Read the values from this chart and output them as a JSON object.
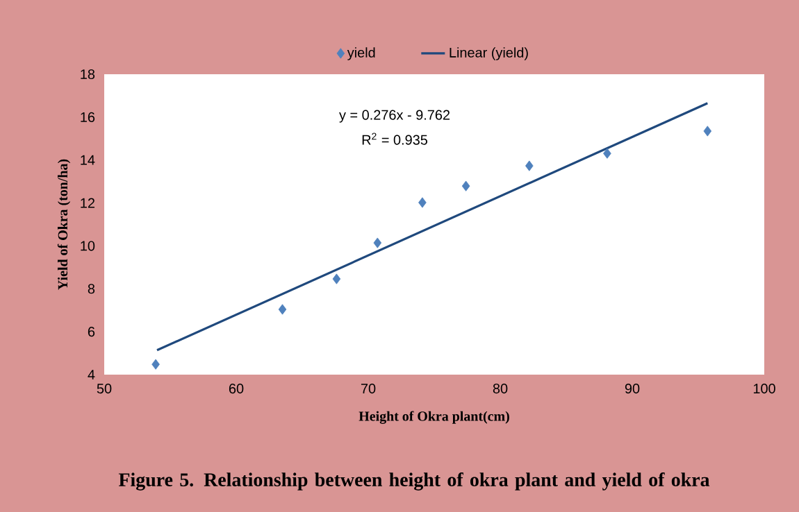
{
  "chart_data": {
    "type": "scatter",
    "title": "Figure 5. Relationship between height of okra plant and yield of okra",
    "xlabel": "Height of Okra plant(cm)",
    "ylabel": "Yield of Okra (ton/ha)",
    "series": [
      {
        "name": "yield",
        "color": "#4f81bd",
        "marker": "diamond",
        "x": [
          53.9,
          63.5,
          67.6,
          70.7,
          74.1,
          77.4,
          82.2,
          88.1,
          95.7
        ],
        "values": [
          4.48,
          7.04,
          8.46,
          10.14,
          12.02,
          12.79,
          13.73,
          14.31,
          15.35
        ]
      },
      {
        "name": "Linear (yield)",
        "type": "line",
        "color": "#1f497d",
        "marker": "none",
        "x": [
          54.0,
          95.7
        ],
        "values": [
          5.14,
          16.65
        ]
      }
    ],
    "annotations": [
      "y = 0.276x - 9.762",
      "R$^{2}$ = 0.935"
    ],
    "xlim": [
      50,
      100
    ],
    "xticks": [
      50,
      60,
      70,
      80,
      90,
      100
    ],
    "ylim": [
      4,
      18
    ],
    "yticks": [
      4,
      6,
      8,
      10,
      12,
      14,
      16,
      18
    ],
    "grid": false,
    "legend": "top"
  }
}
